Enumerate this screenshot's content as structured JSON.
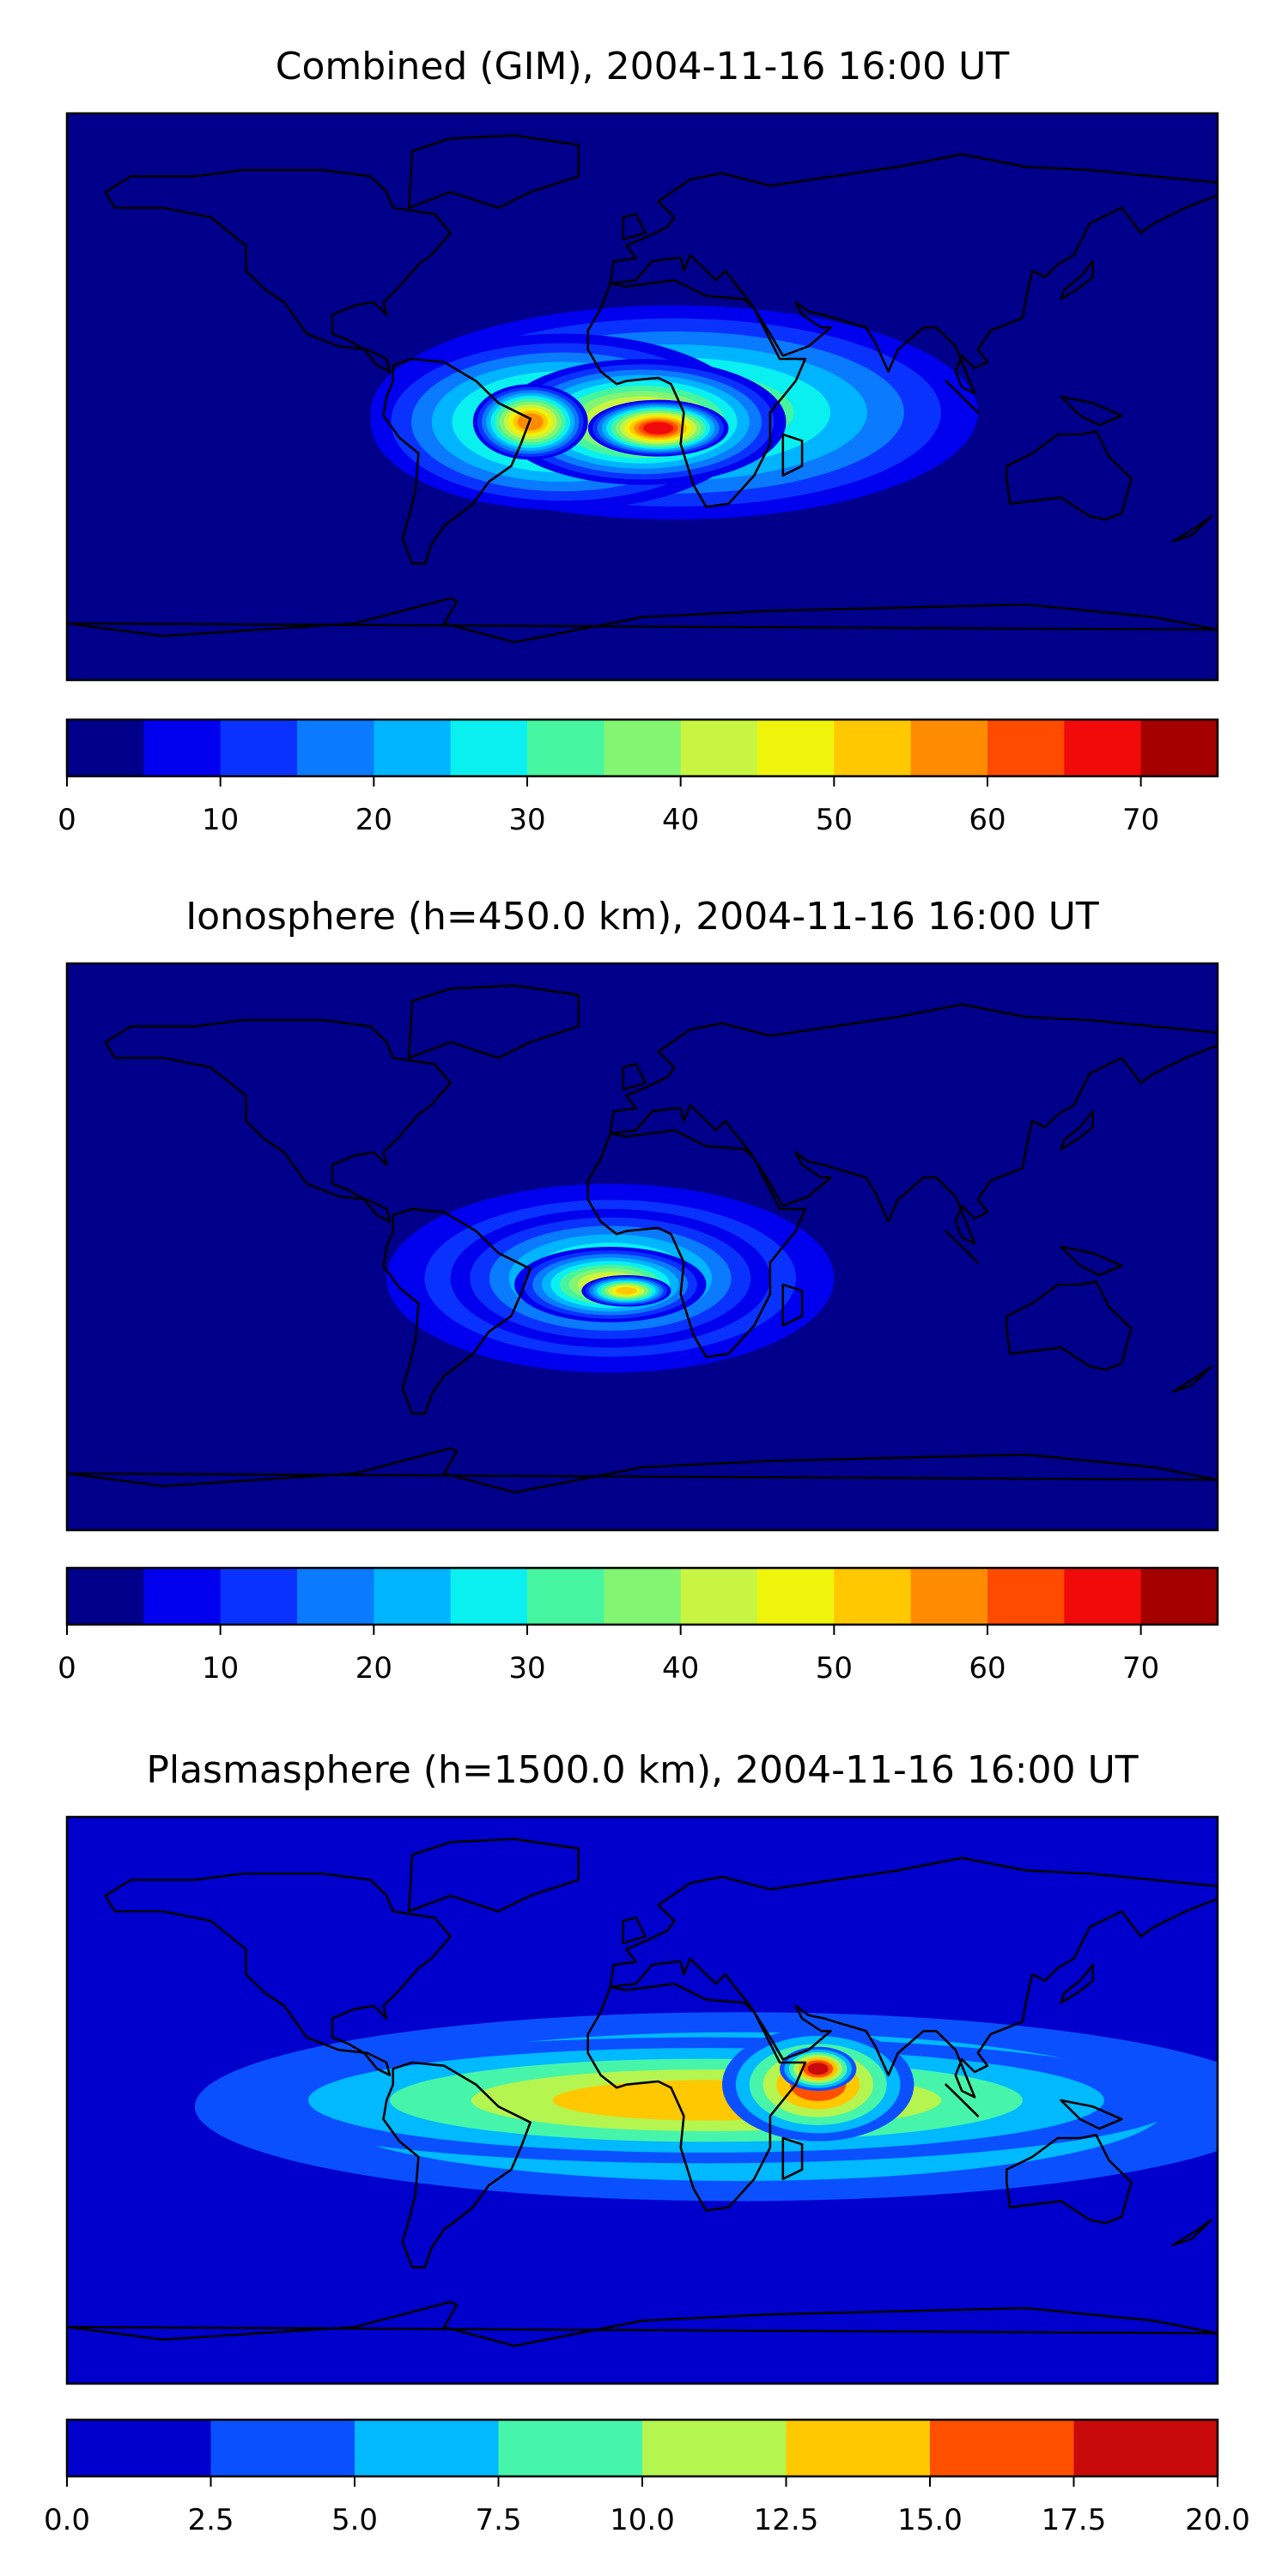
{
  "chart_data": [
    {
      "type": "heatmap",
      "title": "Combined (GIM), 2004-11-16 16:00 UT",
      "colorbar": {
        "levels": [
          0,
          5,
          10,
          15,
          20,
          25,
          30,
          35,
          40,
          45,
          50,
          55,
          60,
          65,
          70,
          75
        ],
        "tick_values": [
          0,
          10,
          20,
          30,
          40,
          50,
          60,
          70
        ],
        "tick_labels": [
          "0",
          "10",
          "20",
          "30",
          "40",
          "50",
          "60",
          "70"
        ],
        "colors": [
          "#00008b",
          "#0000ee",
          "#0a32ff",
          "#0a7aff",
          "#00b4ff",
          "#0af0f0",
          "#46f5a0",
          "#82f573",
          "#c8f541",
          "#eef50a",
          "#ffc800",
          "#ff8c00",
          "#ff4b00",
          "#f00a0a",
          "#a50000"
        ]
      },
      "blobs": [
        {
          "lon": 10,
          "lat": -5,
          "rx": 95,
          "ry": 34,
          "level": 35
        },
        {
          "lon": -25,
          "lat": -8,
          "rx": 60,
          "ry": 28,
          "level": 40
        },
        {
          "lon": 0,
          "lat": -8,
          "rx": 45,
          "ry": 20,
          "level": 50
        },
        {
          "lon": -35,
          "lat": -8,
          "rx": 18,
          "ry": 12,
          "level": 55
        },
        {
          "lon": 5,
          "lat": -10,
          "rx": 22,
          "ry": 9,
          "level": 65
        }
      ]
    },
    {
      "type": "heatmap",
      "title": "Ionosphere  (h=450.0 km), 2004-11-16 16:00 UT",
      "colorbar": {
        "levels": [
          0,
          5,
          10,
          15,
          20,
          25,
          30,
          35,
          40,
          45,
          50,
          55,
          60,
          65,
          70,
          75
        ],
        "tick_values": [
          0,
          10,
          20,
          30,
          40,
          50,
          60,
          70
        ],
        "tick_labels": [
          "0",
          "10",
          "20",
          "30",
          "40",
          "50",
          "60",
          "70"
        ],
        "colors": [
          "#00008b",
          "#0000ee",
          "#0a32ff",
          "#0a7aff",
          "#00b4ff",
          "#0af0f0",
          "#46f5a0",
          "#82f573",
          "#c8f541",
          "#eef50a",
          "#ffc800",
          "#ff8c00",
          "#ff4b00",
          "#f00a0a",
          "#a50000"
        ]
      },
      "blobs": [
        {
          "lon": -10,
          "lat": -10,
          "rx": 70,
          "ry": 30,
          "level": 25
        },
        {
          "lon": -10,
          "lat": -10,
          "rx": 50,
          "ry": 22,
          "level": 35
        },
        {
          "lon": -10,
          "lat": -12,
          "rx": 30,
          "ry": 12,
          "level": 45
        },
        {
          "lon": -5,
          "lat": -14,
          "rx": 14,
          "ry": 5,
          "level": 50
        }
      ]
    },
    {
      "type": "heatmap",
      "title": "Plasmasphere (h=1500.0 km), 2004-11-16 16:00 UT",
      "colorbar": {
        "levels": [
          0,
          2.5,
          5,
          7.5,
          10,
          12.5,
          15,
          17.5,
          20
        ],
        "tick_values": [
          0,
          2.5,
          5,
          7.5,
          10,
          12.5,
          15,
          17.5,
          20
        ],
        "tick_labels": [
          "0.0",
          "2.5",
          "5.0",
          "7.5",
          "10.0",
          "12.5",
          "15.0",
          "17.5",
          "20.0"
        ],
        "colors": [
          "#0000cd",
          "#0a50ff",
          "#00b9ff",
          "#46f5aa",
          "#b4f550",
          "#ffc800",
          "#ff5000",
          "#c80a0a"
        ]
      },
      "blobs": [
        {
          "lon": 30,
          "lat": -2,
          "rx": 170,
          "ry": 30,
          "level": 10
        },
        {
          "lon": 20,
          "lat": 0,
          "rx": 150,
          "ry": 20,
          "level": 12.5
        },
        {
          "lon": 55,
          "lat": 5,
          "rx": 30,
          "ry": 18,
          "level": 15
        },
        {
          "lon": 55,
          "lat": 10,
          "rx": 12,
          "ry": 7,
          "level": 17.5
        }
      ]
    }
  ]
}
